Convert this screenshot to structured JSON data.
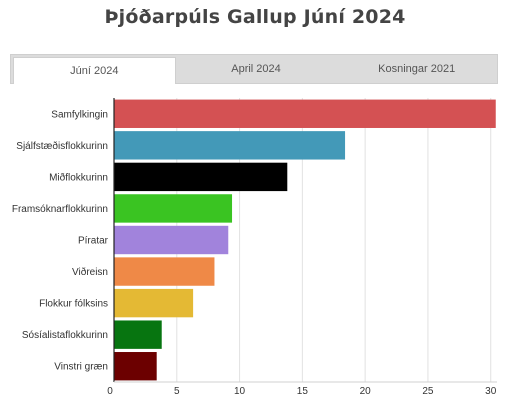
{
  "title": "Þjóðarpúls Gallup Júní 2024",
  "tabs": [
    {
      "label": "Júní 2024",
      "active": true
    },
    {
      "label": "April 2024",
      "active": false
    },
    {
      "label": "Kosningar 2021",
      "active": false
    }
  ],
  "chart_data": {
    "type": "bar",
    "orientation": "horizontal",
    "title": "Þjóðarpúls Gallup Júní 2024",
    "xlabel": "",
    "ylabel": "",
    "xlim": [
      0,
      30.5
    ],
    "ticks": [
      0,
      5,
      10,
      15,
      20,
      25,
      30
    ],
    "grid": true,
    "categories": [
      "Samfylkingin",
      "Sjálfstæðisflokkurinn",
      "Miðflokkurinn",
      "Framsóknarflokkurinn",
      "Píratar",
      "Viðreisn",
      "Flokkur fólksins",
      "Sósíalistaflokkurinn",
      "Vinstri græn"
    ],
    "values": [
      30.4,
      18.4,
      13.8,
      9.4,
      9.1,
      8.0,
      6.3,
      3.8,
      3.4
    ],
    "colors": [
      "#d45153",
      "#4399b8",
      "#000000",
      "#3ac422",
      "#a183dc",
      "#ef8947",
      "#e4b934",
      "#077510",
      "#6c0000"
    ]
  }
}
